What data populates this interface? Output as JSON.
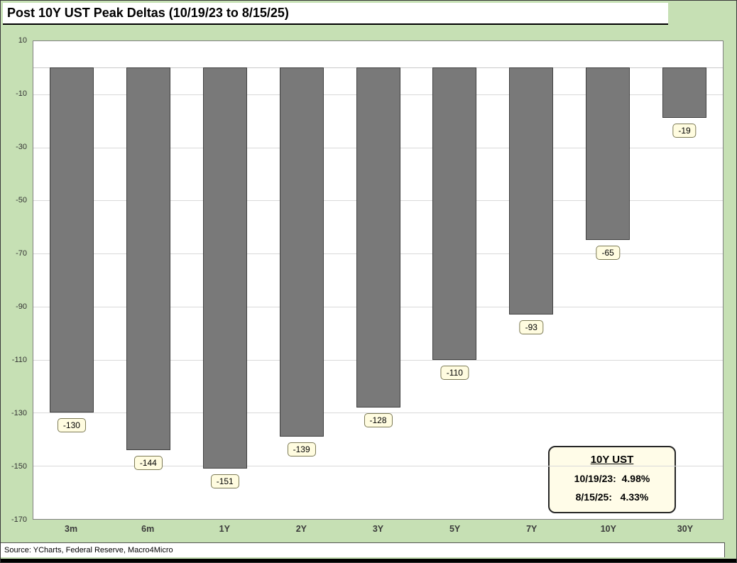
{
  "title": "Post 10Y UST Peak Deltas (10/19/23 to 8/15/25)",
  "source": "Source: YCharts, Federal Reserve, Macro4Micro",
  "legend": {
    "title": "10Y UST",
    "lines": [
      "10/19/23:  4.98%",
      "8/15/25:   4.33%"
    ]
  },
  "colors": {
    "background_green": "#c6e0b4",
    "bar_fill": "#797979",
    "label_fill": "#fffce0",
    "legend_fill": "#fffce8",
    "gridline": "#d9d9d9"
  },
  "chart_data": {
    "type": "bar",
    "title": "Post 10Y UST Peak Deltas (10/19/23 to 8/15/25)",
    "categories": [
      "3m",
      "6m",
      "1Y",
      "2Y",
      "3Y",
      "5Y",
      "7Y",
      "10Y",
      "30Y"
    ],
    "values": [
      -130,
      -144,
      -151,
      -139,
      -128,
      -110,
      -93,
      -65,
      -19
    ],
    "xlabel": "",
    "ylabel": "",
    "ylim": [
      -170,
      10
    ],
    "yticks": [
      10,
      -10,
      -30,
      -50,
      -70,
      -90,
      -110,
      -130,
      -150,
      -170
    ],
    "grid": true,
    "legend_position": "bottom-right"
  }
}
